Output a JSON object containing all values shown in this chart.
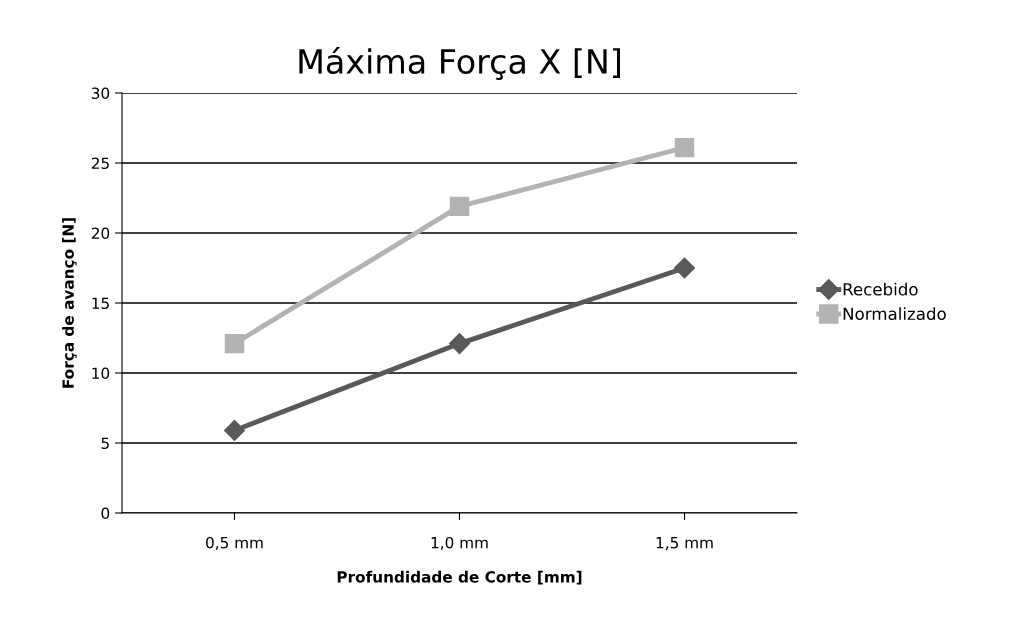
{
  "chart_data": {
    "type": "line",
    "title": "Máxima Força X [N]",
    "xlabel": "Profundidade de Corte [mm]",
    "ylabel": "Força de avanço [N]",
    "categories": [
      "0,5 mm",
      "1,0 mm",
      "1,5 mm"
    ],
    "series": [
      {
        "name": "Recebido",
        "color": "#595959",
        "marker": "diamond",
        "values": [
          5.9,
          12.1,
          17.5
        ]
      },
      {
        "name": "Normalizado",
        "color": "#b3b3b3",
        "marker": "square",
        "values": [
          12.1,
          21.9,
          26.1
        ]
      }
    ],
    "ylim": [
      0,
      30
    ],
    "yticks": [
      0,
      5,
      10,
      15,
      20,
      25,
      30
    ],
    "grid": "y",
    "legend": "right",
    "line_style": "solid"
  }
}
